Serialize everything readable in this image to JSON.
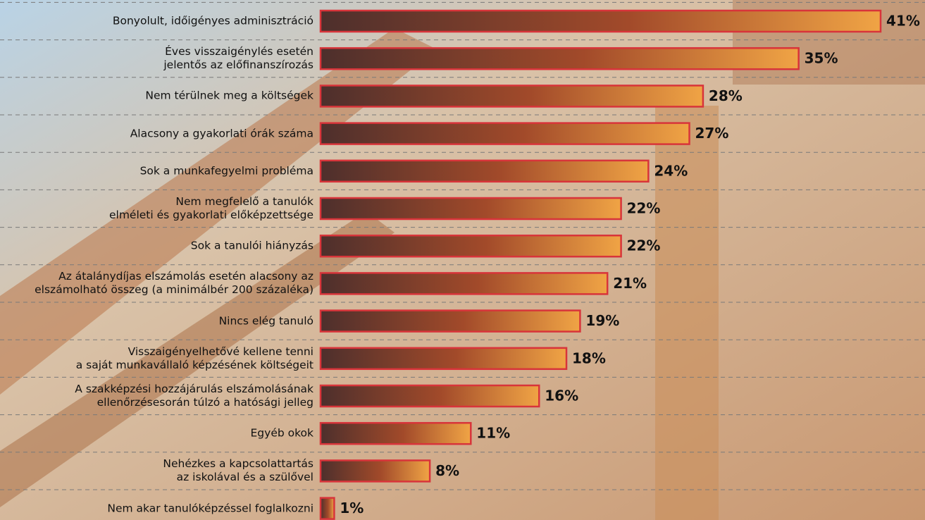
{
  "chart_data": {
    "type": "bar",
    "orientation": "horizontal",
    "categories": [
      "Bonyolult, időigényes adminisztráció",
      "Éves visszaigénylés esetén\njelentős az előfinanszírozás",
      "Nem térülnek meg a költségek",
      "Alacsony a gyakorlati órák száma",
      "Sok a munkafegyelmi probléma",
      "Nem megfelelő a tanulók\nelméleti és gyakorlati előképzettsége",
      "Sok a tanulói hiányzás",
      "Az átalánydíjas elszámolás esetén alacsony az\nelszámolható összeg (a minimálbér 200 százaléka)",
      "Nincs elég tanuló",
      "Visszaigényelhetővé kellene tenni\na saját munkavállaló képzésének költségeit",
      "A szakképzési hozzájárulás elszámolásának\nellenőrzésesorán túlzó a hatósági jelleg",
      "Egyéb okok",
      "Nehézkes a kapcsolattartás\naz iskolával és a szülővel",
      "Nem akar tanulóképzéssel foglalkozni"
    ],
    "values": [
      41,
      35,
      28,
      27,
      24,
      22,
      22,
      21,
      19,
      18,
      16,
      11,
      8,
      1
    ],
    "value_labels": [
      "41%",
      "35%",
      "28%",
      "27%",
      "24%",
      "22%",
      "22%",
      "21%",
      "19%",
      "18%",
      "16%",
      "11%",
      "8%",
      "1%"
    ],
    "color": "#d8343a"
  }
}
